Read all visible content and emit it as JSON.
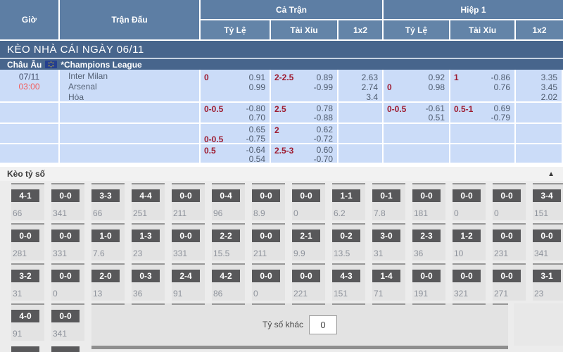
{
  "header": {
    "col_time": "Giờ",
    "col_match": "Trận Đấu",
    "group_full": "Cả Trận",
    "group_half": "Hiệp 1",
    "sub_handicap": "Tỷ Lệ",
    "sub_ou": "Tài Xỉu",
    "sub_1x2": "1x2"
  },
  "banner": {
    "title": "KÈO NHÀ CÁI NGÀY 06/11"
  },
  "league": {
    "region": "Châu Âu",
    "flag_icon": "eu-flag",
    "name": "*Champions League"
  },
  "match": {
    "date": "07/11",
    "time": "03:00",
    "home": "Inter Milan",
    "away": "Arsenal",
    "draw_label": "Hòa",
    "rows": [
      {
        "ft_hc": {
          "label": "0",
          "v1": "0.91",
          "v2": "0.99"
        },
        "ft_ou": {
          "label": "2-2.5",
          "v1": "0.89",
          "v2": "-0.99"
        },
        "ft_1x2": [
          "2.63",
          "2.74",
          "3.4"
        ],
        "h1_hc": {
          "label": "0",
          "v1": "0.92",
          "v2": "0.98"
        },
        "h1_ou": {
          "label": "1",
          "v1": "-0.86",
          "v2": "0.76"
        },
        "h1_1x2": [
          "3.35",
          "3.45",
          "2.02"
        ]
      },
      {
        "ft_hc": {
          "label": "0-0.5",
          "v1": "-0.80",
          "v2": "0.70"
        },
        "ft_ou": {
          "label": "2.5",
          "v1": "0.78",
          "v2": "-0.88"
        },
        "h1_hc": {
          "label": "0-0.5",
          "v1": "-0.61",
          "v2": "0.51"
        },
        "h1_ou": {
          "label": "0.5-1",
          "v1": "0.69",
          "v2": "-0.79"
        }
      },
      {
        "ft_hc": {
          "label": "0-0.5",
          "v1": "0.65",
          "v2": "-0.75"
        },
        "ft_ou": {
          "label": "2",
          "v1": "0.62",
          "v2": "-0.72"
        }
      },
      {
        "ft_hc": {
          "label": "0.5",
          "v1": "-0.64",
          "v2": "0.54"
        },
        "ft_ou": {
          "label": "2.5-3",
          "v1": "0.60",
          "v2": "-0.70"
        }
      }
    ]
  },
  "scores": {
    "title": "Kèo tỷ số",
    "collapse_icon": "▲",
    "rows": [
      [
        {
          "score": "4-1",
          "odds": "66"
        },
        {
          "score": "0-0",
          "odds": "341"
        },
        {
          "score": "3-3",
          "odds": "66"
        },
        {
          "score": "4-4",
          "odds": "251"
        },
        {
          "score": "0-0",
          "odds": "211"
        },
        {
          "score": "0-4",
          "odds": "96"
        },
        {
          "score": "0-0",
          "odds": "8.9"
        },
        {
          "score": "0-0",
          "odds": "0"
        },
        {
          "score": "1-1",
          "odds": "6.2"
        },
        {
          "score": "0-1",
          "odds": "7.8"
        },
        {
          "score": "0-0",
          "odds": "181"
        },
        {
          "score": "0-0",
          "odds": "0"
        },
        {
          "score": "0-0",
          "odds": "0"
        },
        {
          "score": "3-4",
          "odds": "151"
        }
      ],
      [
        {
          "score": "0-0",
          "odds": "281"
        },
        {
          "score": "0-0",
          "odds": "331"
        },
        {
          "score": "1-0",
          "odds": "7.6"
        },
        {
          "score": "1-3",
          "odds": "23"
        },
        {
          "score": "0-0",
          "odds": "331"
        },
        {
          "score": "2-2",
          "odds": "15.5"
        },
        {
          "score": "0-0",
          "odds": "211"
        },
        {
          "score": "2-1",
          "odds": "9.9"
        },
        {
          "score": "0-2",
          "odds": "13.5"
        },
        {
          "score": "3-0",
          "odds": "31"
        },
        {
          "score": "2-3",
          "odds": "36"
        },
        {
          "score": "1-2",
          "odds": "10"
        },
        {
          "score": "0-0",
          "odds": "231"
        },
        {
          "score": "0-0",
          "odds": "341"
        }
      ],
      [
        {
          "score": "3-2",
          "odds": "31"
        },
        {
          "score": "0-0",
          "odds": "0"
        },
        {
          "score": "2-0",
          "odds": "13"
        },
        {
          "score": "0-3",
          "odds": "36"
        },
        {
          "score": "2-4",
          "odds": "91"
        },
        {
          "score": "4-2",
          "odds": "86"
        },
        {
          "score": "0-0",
          "odds": "0"
        },
        {
          "score": "0-0",
          "odds": "221"
        },
        {
          "score": "4-3",
          "odds": "151"
        },
        {
          "score": "1-4",
          "odds": "71"
        },
        {
          "score": "0-0",
          "odds": "191"
        },
        {
          "score": "0-0",
          "odds": "321"
        },
        {
          "score": "0-0",
          "odds": "271"
        },
        {
          "score": "3-1",
          "odds": "23"
        }
      ],
      [
        {
          "score": "4-0",
          "odds": "91"
        },
        {
          "score": "0-0",
          "odds": "341"
        }
      ]
    ],
    "other": {
      "label": "Tỷ số khác",
      "value": "0"
    }
  },
  "colors": {
    "header_blue": "#5d7ea4",
    "banner_blue": "#47658c",
    "row_blue": "#cbdcf8",
    "handicap_maroon": "#9e1b30",
    "time_red": "#f25c5c",
    "score_box_gray": "#58585a"
  }
}
